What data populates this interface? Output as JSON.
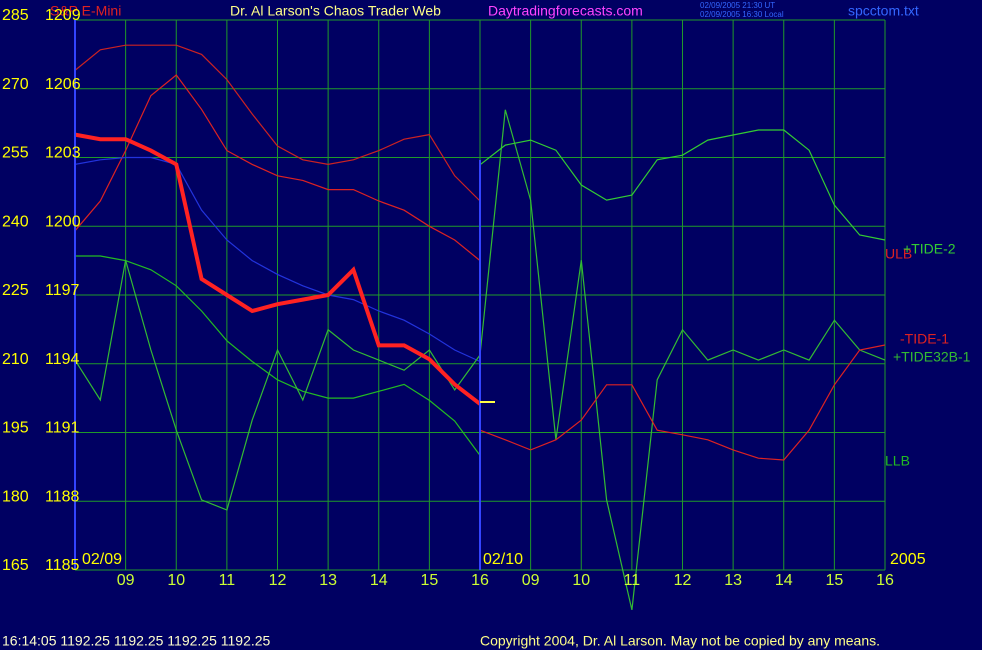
{
  "chart_data": {
    "type": "line",
    "title": "Dr. Al Larson's Chaos Trader Web",
    "instrument": "S&P E-Mini",
    "website": "Daytradingforecasts.com",
    "timestamps": [
      "02/09/2005 21:30 UT",
      "02/09/2005 16:30 Local"
    ],
    "file": "spcctom.txt",
    "date_labels": [
      "02/09",
      "02/10",
      "2005"
    ],
    "status": "16:14:05  1192.25 1192.25 1192.25 1192.25",
    "copyright": "Copyright 2004, Dr. Al Larson. May not be copied by any means.",
    "grid": true,
    "x": [
      0,
      0.5,
      1,
      1.5,
      2,
      2.5,
      3,
      3.5,
      4,
      4.5,
      5,
      5.5,
      6,
      6.5,
      7,
      7.5,
      8,
      8.5,
      9,
      9.5,
      10,
      10.5,
      11,
      11.5,
      12,
      12.5,
      13,
      13.5,
      14,
      14.5,
      15,
      15.5,
      16
    ],
    "xlim": [
      0,
      16
    ],
    "xticks": [
      {
        "value": 1,
        "label": "09"
      },
      {
        "value": 2,
        "label": "10"
      },
      {
        "value": 3,
        "label": "11"
      },
      {
        "value": 4,
        "label": "12"
      },
      {
        "value": 5,
        "label": "13"
      },
      {
        "value": 6,
        "label": "14"
      },
      {
        "value": 7,
        "label": "15"
      },
      {
        "value": 8,
        "label": "16"
      },
      {
        "value": 9,
        "label": "09"
      },
      {
        "value": 10,
        "label": "10"
      },
      {
        "value": 11,
        "label": "11"
      },
      {
        "value": 12,
        "label": "12"
      },
      {
        "value": 13,
        "label": "13"
      },
      {
        "value": 14,
        "label": "14"
      },
      {
        "value": 15,
        "label": "15"
      },
      {
        "value": 16,
        "label": "16"
      }
    ],
    "ylim": [
      165,
      285
    ],
    "yticks": [
      165,
      180,
      195,
      210,
      225,
      240,
      255,
      270,
      285
    ],
    "y2lim": [
      1185,
      1209
    ],
    "y2ticks": [
      1185,
      1188,
      1191,
      1194,
      1197,
      1200,
      1203,
      1206,
      1209
    ],
    "series": [
      {
        "color": "#cc2222",
        "axis": "y2",
        "values": [
          1206.8,
          1207.7,
          1207.9,
          1207.9,
          1207.9,
          1207.5,
          1206.4,
          1204.9,
          1203.5,
          1202.9,
          1202.7,
          1202.9,
          1203.3,
          1203.8,
          1204.0,
          1202.2,
          1201.1,
          null,
          null,
          null,
          null,
          null,
          null,
          null,
          null,
          null,
          null,
          null,
          null,
          null,
          null,
          null,
          null
        ]
      },
      {
        "name": "ULB",
        "color": "#dd2222",
        "axis": "y2",
        "values": [
          1199.8,
          1201.1,
          1203.3,
          1205.7,
          1206.6,
          1205.1,
          1203.3,
          1202.7,
          1202.2,
          1202.0,
          1201.6,
          1201.6,
          1201.1,
          1200.7,
          1200.0,
          1199.4,
          1198.5,
          null,
          null,
          null,
          null,
          null,
          null,
          null,
          null,
          null,
          null,
          null,
          null,
          null,
          null,
          null,
          null
        ]
      },
      {
        "color": "#2233dd",
        "axis": "y2",
        "values": [
          1202.7,
          1202.9,
          1203.0,
          1203.0,
          1202.7,
          1200.7,
          1199.4,
          1198.5,
          1197.9,
          1197.4,
          1197.0,
          1196.8,
          1196.3,
          1195.9,
          1195.3,
          1194.6,
          1194.1,
          null,
          null,
          null,
          null,
          null,
          null,
          null,
          null,
          null,
          null,
          null,
          null,
          null,
          null,
          null,
          null
        ]
      },
      {
        "name": "LLB",
        "color": "#22bb22",
        "axis": "y2",
        "values": [
          1198.7,
          1198.7,
          1198.5,
          1198.1,
          1197.4,
          1196.3,
          1195.0,
          1194.1,
          1193.3,
          1192.8,
          1192.5,
          1192.5,
          1192.8,
          1193.1,
          1192.4,
          1191.5,
          1190.0,
          null,
          null,
          null,
          null,
          null,
          null,
          null,
          null,
          null,
          null,
          null,
          null,
          null,
          null,
          null,
          null
        ]
      },
      {
        "name": "+TIDE32B-1",
        "color": "#33bb33",
        "values": [
          210.8,
          202.1,
          232.6,
          213.0,
          195.5,
          180.3,
          178.1,
          197.7,
          213.0,
          202.1,
          217.4,
          213.0,
          210.8,
          208.6,
          213.0,
          204.3,
          211.9,
          265.4,
          245.7,
          193.4,
          232.6,
          180.3,
          156.3,
          206.5,
          217.4,
          210.8,
          213.0,
          210.8,
          213.0,
          210.8,
          219.5,
          213.0,
          210.8
        ]
      },
      {
        "name": "+TIDE-2",
        "color": "#33cc33",
        "values": [
          null,
          null,
          null,
          null,
          null,
          null,
          null,
          null,
          null,
          null,
          null,
          null,
          null,
          null,
          null,
          null,
          253.4,
          257.7,
          258.8,
          256.6,
          249.0,
          245.7,
          246.8,
          254.5,
          255.5,
          258.8,
          259.9,
          261.0,
          261.0,
          256.6,
          244.6,
          238.1,
          237.0
        ]
      },
      {
        "name": "-TIDE-1",
        "color": "#dd2222",
        "values": [
          null,
          null,
          null,
          null,
          null,
          null,
          null,
          null,
          null,
          null,
          null,
          null,
          null,
          null,
          null,
          null,
          195.5,
          193.4,
          191.2,
          193.4,
          197.7,
          205.4,
          205.4,
          195.5,
          194.5,
          193.4,
          191.2,
          189.4,
          189.0,
          195.5,
          205.4,
          213.0,
          214.1
        ]
      },
      {
        "color": "#ff2222",
        "axis": "y2",
        "width": 4,
        "values": [
          1204.0,
          1203.8,
          1203.8,
          1203.3,
          1202.7,
          1197.7,
          1197.0,
          1196.3,
          1196.6,
          1196.8,
          1197.0,
          1198.1,
          1194.8,
          1194.8,
          1194.2,
          1193.1,
          1192.25,
          null,
          null,
          null,
          null,
          null,
          null,
          null,
          null,
          null,
          null,
          null,
          null,
          null,
          null,
          null,
          null
        ]
      }
    ]
  }
}
